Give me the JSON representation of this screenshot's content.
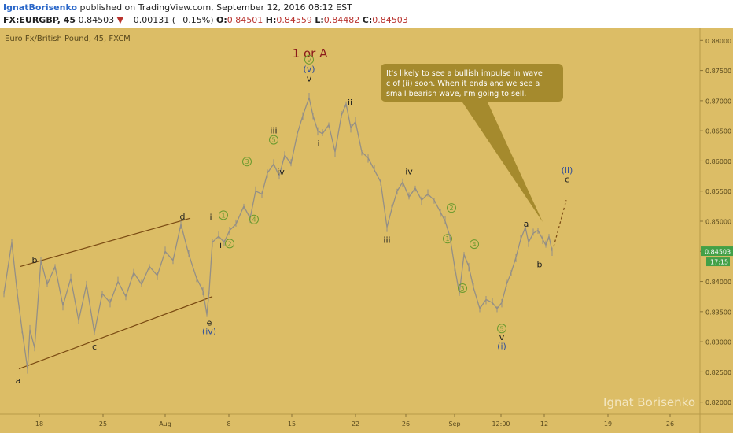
{
  "header": {
    "author": "IgnatBorisenko",
    "published": "published on TradingView.com, September 12, 2016 08:12 EST",
    "symbol": "FX:EURGBP, 45",
    "last": "0.84503",
    "arrow": "▼",
    "change": "−0.00131 (−0.15%)",
    "o_label": "O:",
    "o": "0.84501",
    "h_label": "H:",
    "h": "0.84559",
    "l_label": "L:",
    "l": "0.84482",
    "c_label": "C:",
    "c": "0.84503"
  },
  "colors": {
    "background": "#dcbd66",
    "candles": "#948f86",
    "trendlines": "#7a4a12",
    "price_tag": "#43a047",
    "callout": "#a58a2d",
    "circle_labels": "#6a9a2e",
    "roman_blue": "#2f4e9a",
    "major_label": "#8b1a1a"
  },
  "chart_data": {
    "type": "line",
    "title": "Euro Fx/British Pound, 45, FXCM",
    "x_tick_labels": [
      "18",
      "25",
      "Aug",
      "8",
      "15",
      "22",
      "26",
      "Sep",
      "12:00",
      "12",
      "19",
      "26"
    ],
    "y_tick_labels": [
      "0.88000",
      "0.87500",
      "0.87000",
      "0.86500",
      "0.86000",
      "0.85500",
      "0.85000",
      "0.84500",
      "0.84000",
      "0.83500",
      "0.83000",
      "0.82500",
      "0.82000"
    ],
    "ylim": [
      0.818,
      0.882
    ],
    "xlim": [
      0,
      932
    ],
    "series": [
      {
        "x": [
          5,
          15,
          22,
          28,
          35,
          38,
          44,
          52,
          60,
          70,
          80,
          90,
          100,
          110,
          120,
          130,
          140,
          150,
          160,
          170,
          180,
          190,
          200,
          210,
          220,
          230,
          240,
          250,
          258,
          263,
          266,
          270,
          278,
          285,
          292,
          300,
          310,
          318,
          325,
          333,
          340,
          348,
          355,
          362,
          370,
          378,
          385,
          393,
          398,
          404,
          410,
          418,
          426,
          434,
          440,
          446,
          452,
          460,
          468,
          476,
          484,
          492,
          498,
          505,
          512,
          520,
          528,
          536,
          544,
          552,
          560,
          566,
          572,
          578,
          584,
          590,
          596,
          602,
          610,
          618,
          626,
          632,
          638,
          644,
          650,
          656,
          662,
          668,
          672,
          678,
          684,
          690,
          694,
          698,
          702
        ],
        "values": [
          0.838,
          0.8465,
          0.838,
          0.832,
          0.8255,
          0.832,
          0.829,
          0.8435,
          0.8395,
          0.8425,
          0.836,
          0.8405,
          0.8335,
          0.8395,
          0.8315,
          0.838,
          0.8365,
          0.84,
          0.8375,
          0.8415,
          0.8395,
          0.8425,
          0.841,
          0.845,
          0.8435,
          0.8495,
          0.8445,
          0.8405,
          0.8385,
          0.8345,
          0.8385,
          0.8465,
          0.8475,
          0.8465,
          0.8485,
          0.8495,
          0.8525,
          0.8505,
          0.855,
          0.8545,
          0.858,
          0.8595,
          0.8575,
          0.861,
          0.8595,
          0.8645,
          0.8675,
          0.8705,
          0.8675,
          0.865,
          0.8645,
          0.866,
          0.8615,
          0.8675,
          0.8695,
          0.8655,
          0.8665,
          0.8615,
          0.8605,
          0.8585,
          0.8565,
          0.849,
          0.852,
          0.855,
          0.8565,
          0.854,
          0.8555,
          0.8535,
          0.8545,
          0.8535,
          0.8515,
          0.85,
          0.8475,
          0.8425,
          0.838,
          0.8445,
          0.8425,
          0.839,
          0.8355,
          0.837,
          0.8365,
          0.8355,
          0.8365,
          0.8395,
          0.8415,
          0.844,
          0.847,
          0.849,
          0.8465,
          0.848,
          0.8485,
          0.847,
          0.846,
          0.8475,
          0.84503
        ]
      }
    ],
    "last_price_label": "0.84503",
    "time_label": "17:15",
    "trendlines": [
      {
        "x": [
          26,
          242
        ],
        "y": [
          0.8425,
          0.8505
        ]
      },
      {
        "x": [
          24,
          270
        ],
        "y": [
          0.8255,
          0.8375
        ]
      },
      {
        "x": [
          704,
          720
        ],
        "y": [
          0.8458,
          0.8535
        ],
        "dashed": true
      }
    ],
    "callout": {
      "text": [
        "It's likely to see a bullish impulse in wave",
        "c of (ii) soon. When it ends and we see a",
        "small bearish wave, I'm going to sell."
      ]
    },
    "wave_labels": [
      {
        "text": "1 or A",
        "x": 394,
        "y": 0.8779,
        "color": "major"
      },
      {
        "text": "v",
        "x": 393,
        "y": 0.8768,
        "circle": true
      },
      {
        "text": "(v)",
        "x": 393,
        "y": 0.8753,
        "color": "blue"
      },
      {
        "text": "v",
        "x": 393,
        "y": 0.8737
      },
      {
        "text": "i",
        "x": 405,
        "y": 0.8629
      },
      {
        "text": "ii",
        "x": 445,
        "y": 0.8697
      },
      {
        "text": "iii",
        "x": 348,
        "y": 0.8651
      },
      {
        "text": "5",
        "x": 348,
        "y": 0.8635,
        "circle": true
      },
      {
        "text": "iv",
        "x": 357,
        "y": 0.8582
      },
      {
        "text": "3",
        "x": 314,
        "y": 0.8599,
        "circle": true
      },
      {
        "text": "4",
        "x": 323,
        "y": 0.8503,
        "circle": true
      },
      {
        "text": "i",
        "x": 268,
        "y": 0.8507
      },
      {
        "text": "1",
        "x": 284,
        "y": 0.851,
        "circle": true
      },
      {
        "text": "2",
        "x": 292,
        "y": 0.8463,
        "circle": true
      },
      {
        "text": "ii",
        "x": 282,
        "y": 0.8461
      },
      {
        "text": "d",
        "x": 232,
        "y": 0.8508
      },
      {
        "text": "b",
        "x": 44,
        "y": 0.8436
      },
      {
        "text": "c",
        "x": 120,
        "y": 0.8292
      },
      {
        "text": "a",
        "x": 23,
        "y": 0.8236
      },
      {
        "text": "e",
        "x": 266,
        "y": 0.8332
      },
      {
        "text": "(iv)",
        "x": 266,
        "y": 0.8318,
        "color": "blue"
      },
      {
        "text": "iv",
        "x": 520,
        "y": 0.8583
      },
      {
        "text": "iii",
        "x": 492,
        "y": 0.8469
      },
      {
        "text": "2",
        "x": 574,
        "y": 0.8522,
        "circle": true
      },
      {
        "text": "1",
        "x": 569,
        "y": 0.8471,
        "circle": true
      },
      {
        "text": "4",
        "x": 603,
        "y": 0.8462,
        "circle": true
      },
      {
        "text": "3",
        "x": 588,
        "y": 0.8389,
        "circle": true
      },
      {
        "text": "5",
        "x": 638,
        "y": 0.8322,
        "circle": true
      },
      {
        "text": "v",
        "x": 638,
        "y": 0.8308
      },
      {
        "text": "(i)",
        "x": 638,
        "y": 0.8293,
        "color": "blue"
      },
      {
        "text": "a",
        "x": 669,
        "y": 0.8496
      },
      {
        "text": "b",
        "x": 686,
        "y": 0.8429
      },
      {
        "text": "(ii)",
        "x": 721,
        "y": 0.8585,
        "color": "blue"
      },
      {
        "text": "c",
        "x": 721,
        "y": 0.857
      }
    ]
  },
  "watermark": "Ignat Borisenko"
}
